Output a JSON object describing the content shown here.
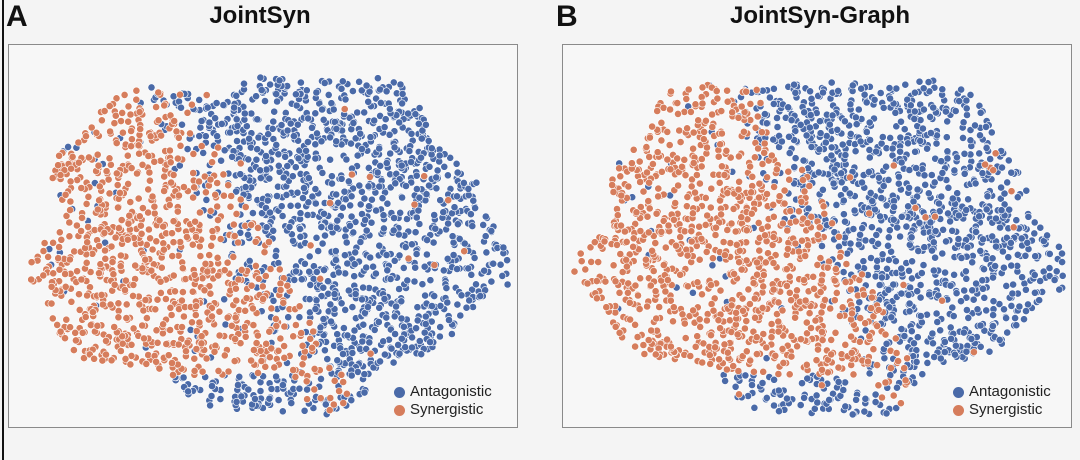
{
  "colors": {
    "antagonistic": "#4a6aa8",
    "synergistic": "#d67d5c"
  },
  "panels": [
    {
      "letter": "A",
      "title": "JointSyn"
    },
    {
      "letter": "B",
      "title": "JointSyn-Graph"
    }
  ],
  "legend": {
    "antagonistic": "Antagonistic",
    "synergistic": "Synergistic"
  },
  "chart_data": [
    {
      "type": "scatter",
      "title": "JointSyn",
      "xlabel": "",
      "ylabel": "",
      "grid": false,
      "legend_position": "bottom-right",
      "series": [
        {
          "name": "Antagonistic",
          "color": "#4a6aa8",
          "approx_count": 1700,
          "region": "right-center"
        },
        {
          "name": "Synergistic",
          "color": "#d67d5c",
          "approx_count": 700,
          "region": "upper-left"
        }
      ]
    },
    {
      "type": "scatter",
      "title": "JointSyn-Graph",
      "xlabel": "",
      "ylabel": "",
      "grid": false,
      "legend_position": "bottom-right",
      "series": [
        {
          "name": "Antagonistic",
          "color": "#4a6aa8",
          "approx_count": 1900,
          "region": "right-center"
        },
        {
          "name": "Synergistic",
          "color": "#d67d5c",
          "approx_count": 650,
          "region": "upper-left"
        }
      ]
    }
  ]
}
